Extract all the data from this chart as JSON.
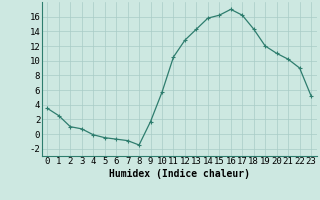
{
  "title": "",
  "xlabel": "Humidex (Indice chaleur)",
  "ylabel": "",
  "x": [
    0,
    1,
    2,
    3,
    4,
    5,
    6,
    7,
    8,
    9,
    10,
    11,
    12,
    13,
    14,
    15,
    16,
    17,
    18,
    19,
    20,
    21,
    22,
    23
  ],
  "y": [
    3.5,
    2.5,
    1.0,
    0.7,
    -0.1,
    -0.5,
    -0.7,
    -0.9,
    -1.5,
    1.7,
    5.7,
    10.5,
    12.8,
    14.3,
    15.8,
    16.2,
    17.0,
    16.2,
    14.3,
    12.0,
    11.0,
    10.2,
    9.0,
    5.2
  ],
  "line_color": "#2e7d6e",
  "marker": "+",
  "marker_size": 3,
  "marker_lw": 0.8,
  "line_width": 0.9,
  "bg_color": "#cde8e1",
  "grid_color": "#a8ccc6",
  "xlim": [
    -0.5,
    23.5
  ],
  "ylim": [
    -3,
    18
  ],
  "yticks": [
    -2,
    0,
    2,
    4,
    6,
    8,
    10,
    12,
    14,
    16
  ],
  "xticks": [
    0,
    1,
    2,
    3,
    4,
    5,
    6,
    7,
    8,
    9,
    10,
    11,
    12,
    13,
    14,
    15,
    16,
    17,
    18,
    19,
    20,
    21,
    22,
    23
  ],
  "xlabel_fontsize": 7,
  "tick_fontsize": 6.5
}
